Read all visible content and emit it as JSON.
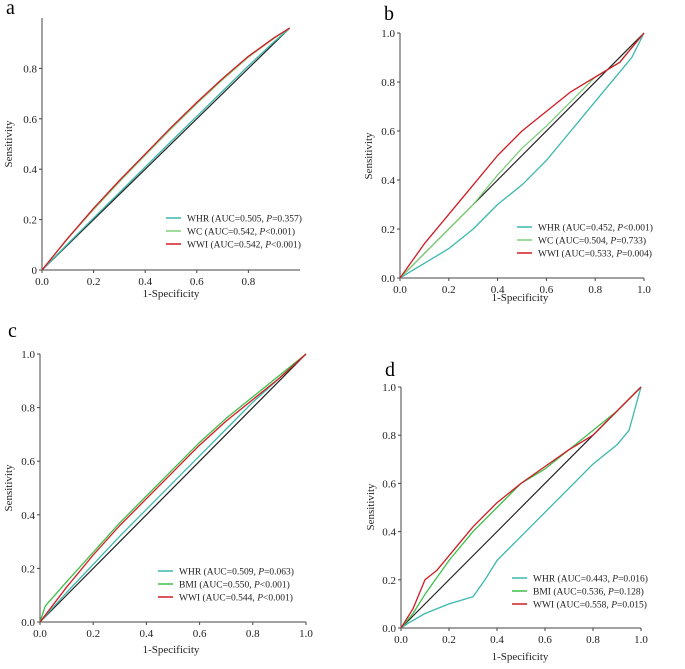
{
  "colors": {
    "WHR": "#3cb8ad",
    "WC": "#7fd07a",
    "BMI": "#3fbf4a",
    "WWI": "#d01c24",
    "reference": "#222222",
    "axis": "#444444"
  },
  "chart_data": [
    {
      "panel": "a",
      "type": "line",
      "xlabel": "1-Specificity",
      "ylabel": "Sensitivity",
      "xlim": [
        0,
        1.0
      ],
      "ylim": [
        0,
        1.0
      ],
      "xticks": [
        "0.0",
        "0.2",
        "0.4",
        "0.6",
        "0.8"
      ],
      "yticks": [
        "0",
        "0.2",
        "0.4",
        "0.6",
        "0.8"
      ],
      "series": [
        {
          "name": "WHR",
          "legend": "WHR (AUC=0.505, P=0.357)",
          "legend_prefix": "WHR (AUC=0.505, ",
          "legend_italic": "P",
          "legend_suffix": "=0.357)",
          "points": [
            [
              0,
              0
            ],
            [
              0.1,
              0.104
            ],
            [
              0.2,
              0.206
            ],
            [
              0.3,
              0.307
            ],
            [
              0.4,
              0.409
            ],
            [
              0.5,
              0.51
            ],
            [
              0.6,
              0.61
            ],
            [
              0.7,
              0.71
            ],
            [
              0.8,
              0.81
            ],
            [
              0.9,
              0.906
            ],
            [
              0.96,
              0.96
            ]
          ]
        },
        {
          "name": "WC",
          "legend": "WC (AUC=0.542, P<0.001)",
          "legend_prefix": "WC (AUC=0.542, ",
          "legend_italic": "P",
          "legend_suffix": "<0.001)",
          "points": [
            [
              0,
              0
            ],
            [
              0.1,
              0.125
            ],
            [
              0.2,
              0.24
            ],
            [
              0.3,
              0.35
            ],
            [
              0.4,
              0.455
            ],
            [
              0.5,
              0.56
            ],
            [
              0.6,
              0.66
            ],
            [
              0.7,
              0.755
            ],
            [
              0.8,
              0.845
            ],
            [
              0.9,
              0.92
            ],
            [
              0.96,
              0.96
            ]
          ]
        },
        {
          "name": "WWI",
          "legend": "WWI (AUC=0.542, P<0.001)",
          "legend_prefix": "WWI (AUC=0.542, ",
          "legend_italic": "P",
          "legend_suffix": "<0.001)",
          "points": [
            [
              0,
              0
            ],
            [
              0.1,
              0.126
            ],
            [
              0.2,
              0.245
            ],
            [
              0.3,
              0.355
            ],
            [
              0.4,
              0.46
            ],
            [
              0.5,
              0.565
            ],
            [
              0.6,
              0.665
            ],
            [
              0.7,
              0.76
            ],
            [
              0.8,
              0.848
            ],
            [
              0.9,
              0.922
            ],
            [
              0.96,
              0.96
            ]
          ]
        }
      ],
      "reference_line": [
        [
          0,
          0
        ],
        [
          0.96,
          0.96
        ]
      ]
    },
    {
      "panel": "b",
      "type": "line",
      "xlabel": "1-Specificity",
      "ylabel": "Sensitivity",
      "xlim": [
        0,
        1.0
      ],
      "ylim": [
        0,
        1.0
      ],
      "xticks": [
        "0.0",
        "0.2",
        "0.4",
        "0.6",
        "0.8",
        "1.0"
      ],
      "yticks": [
        "0.0",
        "0.2",
        "0.4",
        "0.6",
        "0.8",
        "1.0"
      ],
      "series": [
        {
          "name": "WHR",
          "legend": "WHR (AUC=0.452, P<0.001)",
          "legend_prefix": "WHR (AUC=0.452, ",
          "legend_italic": "P",
          "legend_suffix": "<0.001)",
          "points": [
            [
              0,
              0
            ],
            [
              0.05,
              0.03
            ],
            [
              0.1,
              0.06
            ],
            [
              0.2,
              0.12
            ],
            [
              0.3,
              0.2
            ],
            [
              0.4,
              0.3
            ],
            [
              0.5,
              0.38
            ],
            [
              0.6,
              0.48
            ],
            [
              0.7,
              0.6
            ],
            [
              0.8,
              0.72
            ],
            [
              0.9,
              0.84
            ],
            [
              0.95,
              0.9
            ],
            [
              1,
              1
            ]
          ]
        },
        {
          "name": "WC",
          "legend": "WC (AUC=0.504, P=0.733)",
          "legend_prefix": "WC (AUC=0.504, ",
          "legend_italic": "P",
          "legend_suffix": "=0.733)",
          "points": [
            [
              0,
              0
            ],
            [
              0.05,
              0.05
            ],
            [
              0.1,
              0.1
            ],
            [
              0.2,
              0.2
            ],
            [
              0.3,
              0.3
            ],
            [
              0.4,
              0.42
            ],
            [
              0.5,
              0.53
            ],
            [
              0.6,
              0.62
            ],
            [
              0.7,
              0.72
            ],
            [
              0.8,
              0.82
            ],
            [
              0.9,
              0.88
            ],
            [
              1,
              1
            ]
          ]
        },
        {
          "name": "WWI",
          "legend": "WWI (AUC=0.533, P=0.004)",
          "legend_prefix": "WWI (AUC=0.533, ",
          "legend_italic": "P",
          "legend_suffix": "=0.004)",
          "points": [
            [
              0,
              0
            ],
            [
              0.05,
              0.07
            ],
            [
              0.1,
              0.14
            ],
            [
              0.2,
              0.26
            ],
            [
              0.3,
              0.38
            ],
            [
              0.4,
              0.5
            ],
            [
              0.5,
              0.6
            ],
            [
              0.6,
              0.68
            ],
            [
              0.7,
              0.76
            ],
            [
              0.8,
              0.82
            ],
            [
              0.9,
              0.88
            ],
            [
              1,
              1
            ]
          ]
        }
      ],
      "reference_line": [
        [
          0,
          0
        ],
        [
          1,
          1
        ]
      ]
    },
    {
      "panel": "c",
      "type": "line",
      "xlabel": "1-Specificity",
      "ylabel": "Sensitivity",
      "xlim": [
        0,
        1.0
      ],
      "ylim": [
        0,
        1.0
      ],
      "xticks": [
        "0.0",
        "0.2",
        "0.4",
        "0.6",
        "0.8",
        "1.0"
      ],
      "yticks": [
        "0.0",
        "0.2",
        "0.4",
        "0.6",
        "0.8",
        "1.0"
      ],
      "series": [
        {
          "name": "WHR",
          "legend": "WHR (AUC=0.509, P=0.063)",
          "legend_prefix": "WHR (AUC=0.509, ",
          "legend_italic": "P",
          "legend_suffix": "=0.063)",
          "points": [
            [
              0,
              0
            ],
            [
              0.1,
              0.11
            ],
            [
              0.2,
              0.215
            ],
            [
              0.3,
              0.32
            ],
            [
              0.4,
              0.42
            ],
            [
              0.5,
              0.52
            ],
            [
              0.6,
              0.62
            ],
            [
              0.7,
              0.72
            ],
            [
              0.8,
              0.82
            ],
            [
              0.9,
              0.91
            ],
            [
              1,
              1
            ]
          ]
        },
        {
          "name": "BMI",
          "legend": "BMI (AUC=0.550, P<0.001)",
          "legend_prefix": "BMI (AUC=0.550, ",
          "legend_italic": "P",
          "legend_suffix": "<0.001)",
          "points": [
            [
              0,
              0
            ],
            [
              0.02,
              0.06
            ],
            [
              0.1,
              0.15
            ],
            [
              0.2,
              0.26
            ],
            [
              0.3,
              0.37
            ],
            [
              0.4,
              0.47
            ],
            [
              0.5,
              0.57
            ],
            [
              0.6,
              0.67
            ],
            [
              0.7,
              0.76
            ],
            [
              0.8,
              0.84
            ],
            [
              0.9,
              0.92
            ],
            [
              1,
              1
            ]
          ]
        },
        {
          "name": "WWI",
          "legend": "WWI (AUC=0.544, P<0.001)",
          "legend_prefix": "WWI (AUC=0.544, ",
          "legend_italic": "P",
          "legend_suffix": "<0.001)",
          "points": [
            [
              0,
              0
            ],
            [
              0.1,
              0.13
            ],
            [
              0.2,
              0.25
            ],
            [
              0.3,
              0.36
            ],
            [
              0.4,
              0.46
            ],
            [
              0.5,
              0.56
            ],
            [
              0.6,
              0.66
            ],
            [
              0.7,
              0.75
            ],
            [
              0.8,
              0.83
            ],
            [
              0.9,
              0.91
            ],
            [
              1,
              1
            ]
          ]
        }
      ],
      "reference_line": [
        [
          0,
          0
        ],
        [
          1,
          1
        ]
      ]
    },
    {
      "panel": "d",
      "type": "line",
      "xlabel": "1-Specificity",
      "ylabel": "Sensitivity",
      "xlim": [
        0,
        1.0
      ],
      "ylim": [
        0,
        1.0
      ],
      "xticks": [
        "0.0",
        "0.2",
        "0.4",
        "0.6",
        "0.8",
        "1.0"
      ],
      "yticks": [
        "0.0",
        "0.2",
        "0.4",
        "0.6",
        "0.8",
        "1.0"
      ],
      "series": [
        {
          "name": "WHR",
          "legend": "WHR (AUC=0.443, P=0.016)",
          "legend_prefix": "WHR (AUC=0.443, ",
          "legend_italic": "P",
          "legend_suffix": "=0.016)",
          "points": [
            [
              0,
              0
            ],
            [
              0.03,
              0.02
            ],
            [
              0.1,
              0.06
            ],
            [
              0.2,
              0.1
            ],
            [
              0.3,
              0.13
            ],
            [
              0.35,
              0.2
            ],
            [
              0.4,
              0.28
            ],
            [
              0.5,
              0.38
            ],
            [
              0.6,
              0.48
            ],
            [
              0.7,
              0.58
            ],
            [
              0.8,
              0.68
            ],
            [
              0.9,
              0.76
            ],
            [
              0.95,
              0.82
            ],
            [
              1,
              1
            ]
          ]
        },
        {
          "name": "BMI",
          "legend": "BMI (AUC=0.536, P=0.128)",
          "legend_prefix": "BMI (AUC=0.536, ",
          "legend_italic": "P",
          "legend_suffix": "=0.128)",
          "points": [
            [
              0,
              0
            ],
            [
              0.05,
              0.06
            ],
            [
              0.1,
              0.14
            ],
            [
              0.2,
              0.28
            ],
            [
              0.3,
              0.4
            ],
            [
              0.4,
              0.5
            ],
            [
              0.5,
              0.6
            ],
            [
              0.6,
              0.66
            ],
            [
              0.7,
              0.74
            ],
            [
              0.8,
              0.82
            ],
            [
              0.9,
              0.9
            ],
            [
              1,
              1
            ]
          ]
        },
        {
          "name": "WWI",
          "legend": "WWI (AUC=0.558, P=0.015)",
          "legend_prefix": "WWI (AUC=0.558, ",
          "legend_italic": "P",
          "legend_suffix": "=0.015)",
          "points": [
            [
              0,
              0
            ],
            [
              0.05,
              0.08
            ],
            [
              0.1,
              0.2
            ],
            [
              0.15,
              0.24
            ],
            [
              0.2,
              0.3
            ],
            [
              0.3,
              0.42
            ],
            [
              0.4,
              0.52
            ],
            [
              0.5,
              0.6
            ],
            [
              0.6,
              0.67
            ],
            [
              0.7,
              0.74
            ],
            [
              0.8,
              0.8
            ],
            [
              0.9,
              0.9
            ],
            [
              1,
              1
            ]
          ]
        }
      ],
      "reference_line": [
        [
          0,
          0
        ],
        [
          1,
          1
        ]
      ]
    }
  ]
}
